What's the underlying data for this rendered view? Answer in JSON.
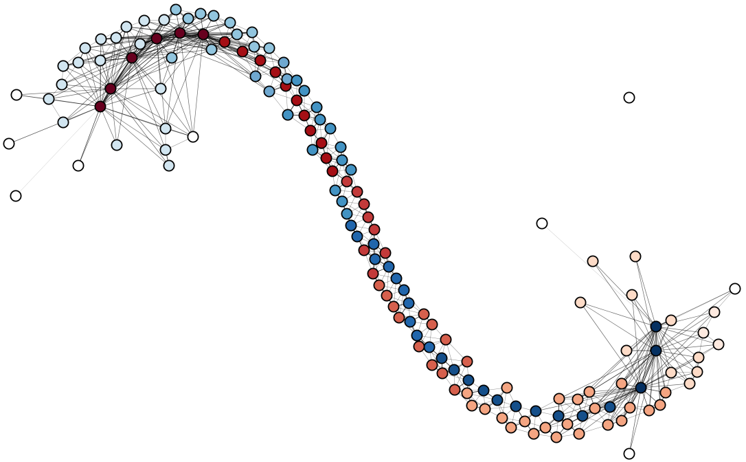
{
  "diagram": {
    "type": "network-graph",
    "labels_shown": false,
    "node_style": "filled circles with black outline",
    "edge_color": "#000000",
    "palette": {
      "white": "#ffffff",
      "red_darkest": "#67001f",
      "red_dark": "#a50f15",
      "red_mid": "#c23a3a",
      "red_light": "#d6604d",
      "salmon": "#f4a582",
      "peach": "#fddbc7",
      "peach_pale": "#fde9df",
      "blue_pale": "#d1e5f0",
      "blue_light": "#92c5de",
      "blue_mid": "#6fa8d0",
      "blue": "#4393c3",
      "blue_strong": "#2166ac",
      "blue_dark": "#154f8a",
      "blue_darkest": "#053061"
    }
  }
}
